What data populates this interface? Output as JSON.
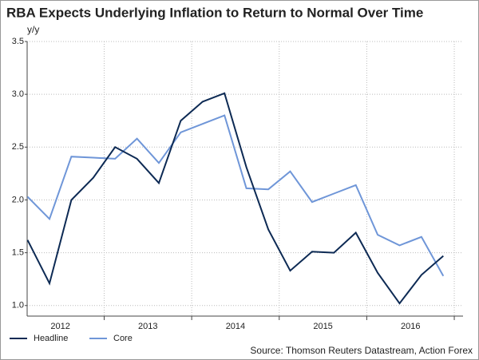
{
  "chart_data": {
    "type": "line",
    "title": "RBA Expects Underlying Inflation to Return to Normal Over Time",
    "y_label": "y/y",
    "source": "Source: Thomson Reuters Datastream, Action Forex",
    "x": [
      2012.125,
      2012.375,
      2012.625,
      2012.875,
      2013.125,
      2013.375,
      2013.625,
      2013.875,
      2014.125,
      2014.375,
      2014.625,
      2014.875,
      2015.125,
      2015.375,
      2015.625,
      2015.875,
      2016.125,
      2016.375,
      2016.625,
      2016.875
    ],
    "series": [
      {
        "name": "Headline",
        "color": "#0d2a54",
        "values": [
          1.62,
          1.21,
          2.0,
          2.21,
          2.5,
          2.39,
          2.16,
          2.75,
          2.93,
          3.01,
          2.31,
          1.72,
          1.33,
          1.51,
          1.5,
          1.69,
          1.31,
          1.02,
          1.29,
          1.47
        ]
      },
      {
        "name": "Core",
        "color": "#6f96d8",
        "values": [
          2.03,
          1.82,
          2.41,
          2.4,
          2.39,
          2.58,
          2.35,
          2.64,
          2.72,
          2.8,
          2.11,
          2.1,
          2.27,
          1.98,
          2.06,
          2.14,
          1.67,
          1.57,
          1.65,
          1.28
        ]
      }
    ],
    "xlim": [
      2012.12,
      2017.1
    ],
    "xticks": [
      {
        "value": 2012.5,
        "label": "2012"
      },
      {
        "value": 2013.5,
        "label": "2013"
      },
      {
        "value": 2014.5,
        "label": "2014"
      },
      {
        "value": 2015.5,
        "label": "2015"
      },
      {
        "value": 2016.5,
        "label": "2016"
      }
    ],
    "x_gridlines": [
      2013,
      2014,
      2015,
      2016,
      2017
    ],
    "ylim": [
      0.9,
      3.5
    ],
    "yticks": [
      {
        "value": 1.0,
        "label": "1.0"
      },
      {
        "value": 1.5,
        "label": "1.5"
      },
      {
        "value": 2.0,
        "label": "2.0"
      },
      {
        "value": 2.5,
        "label": "2.5"
      },
      {
        "value": 3.0,
        "label": "3.0"
      },
      {
        "value": 3.5,
        "label": "3.5"
      }
    ],
    "grid": true
  }
}
